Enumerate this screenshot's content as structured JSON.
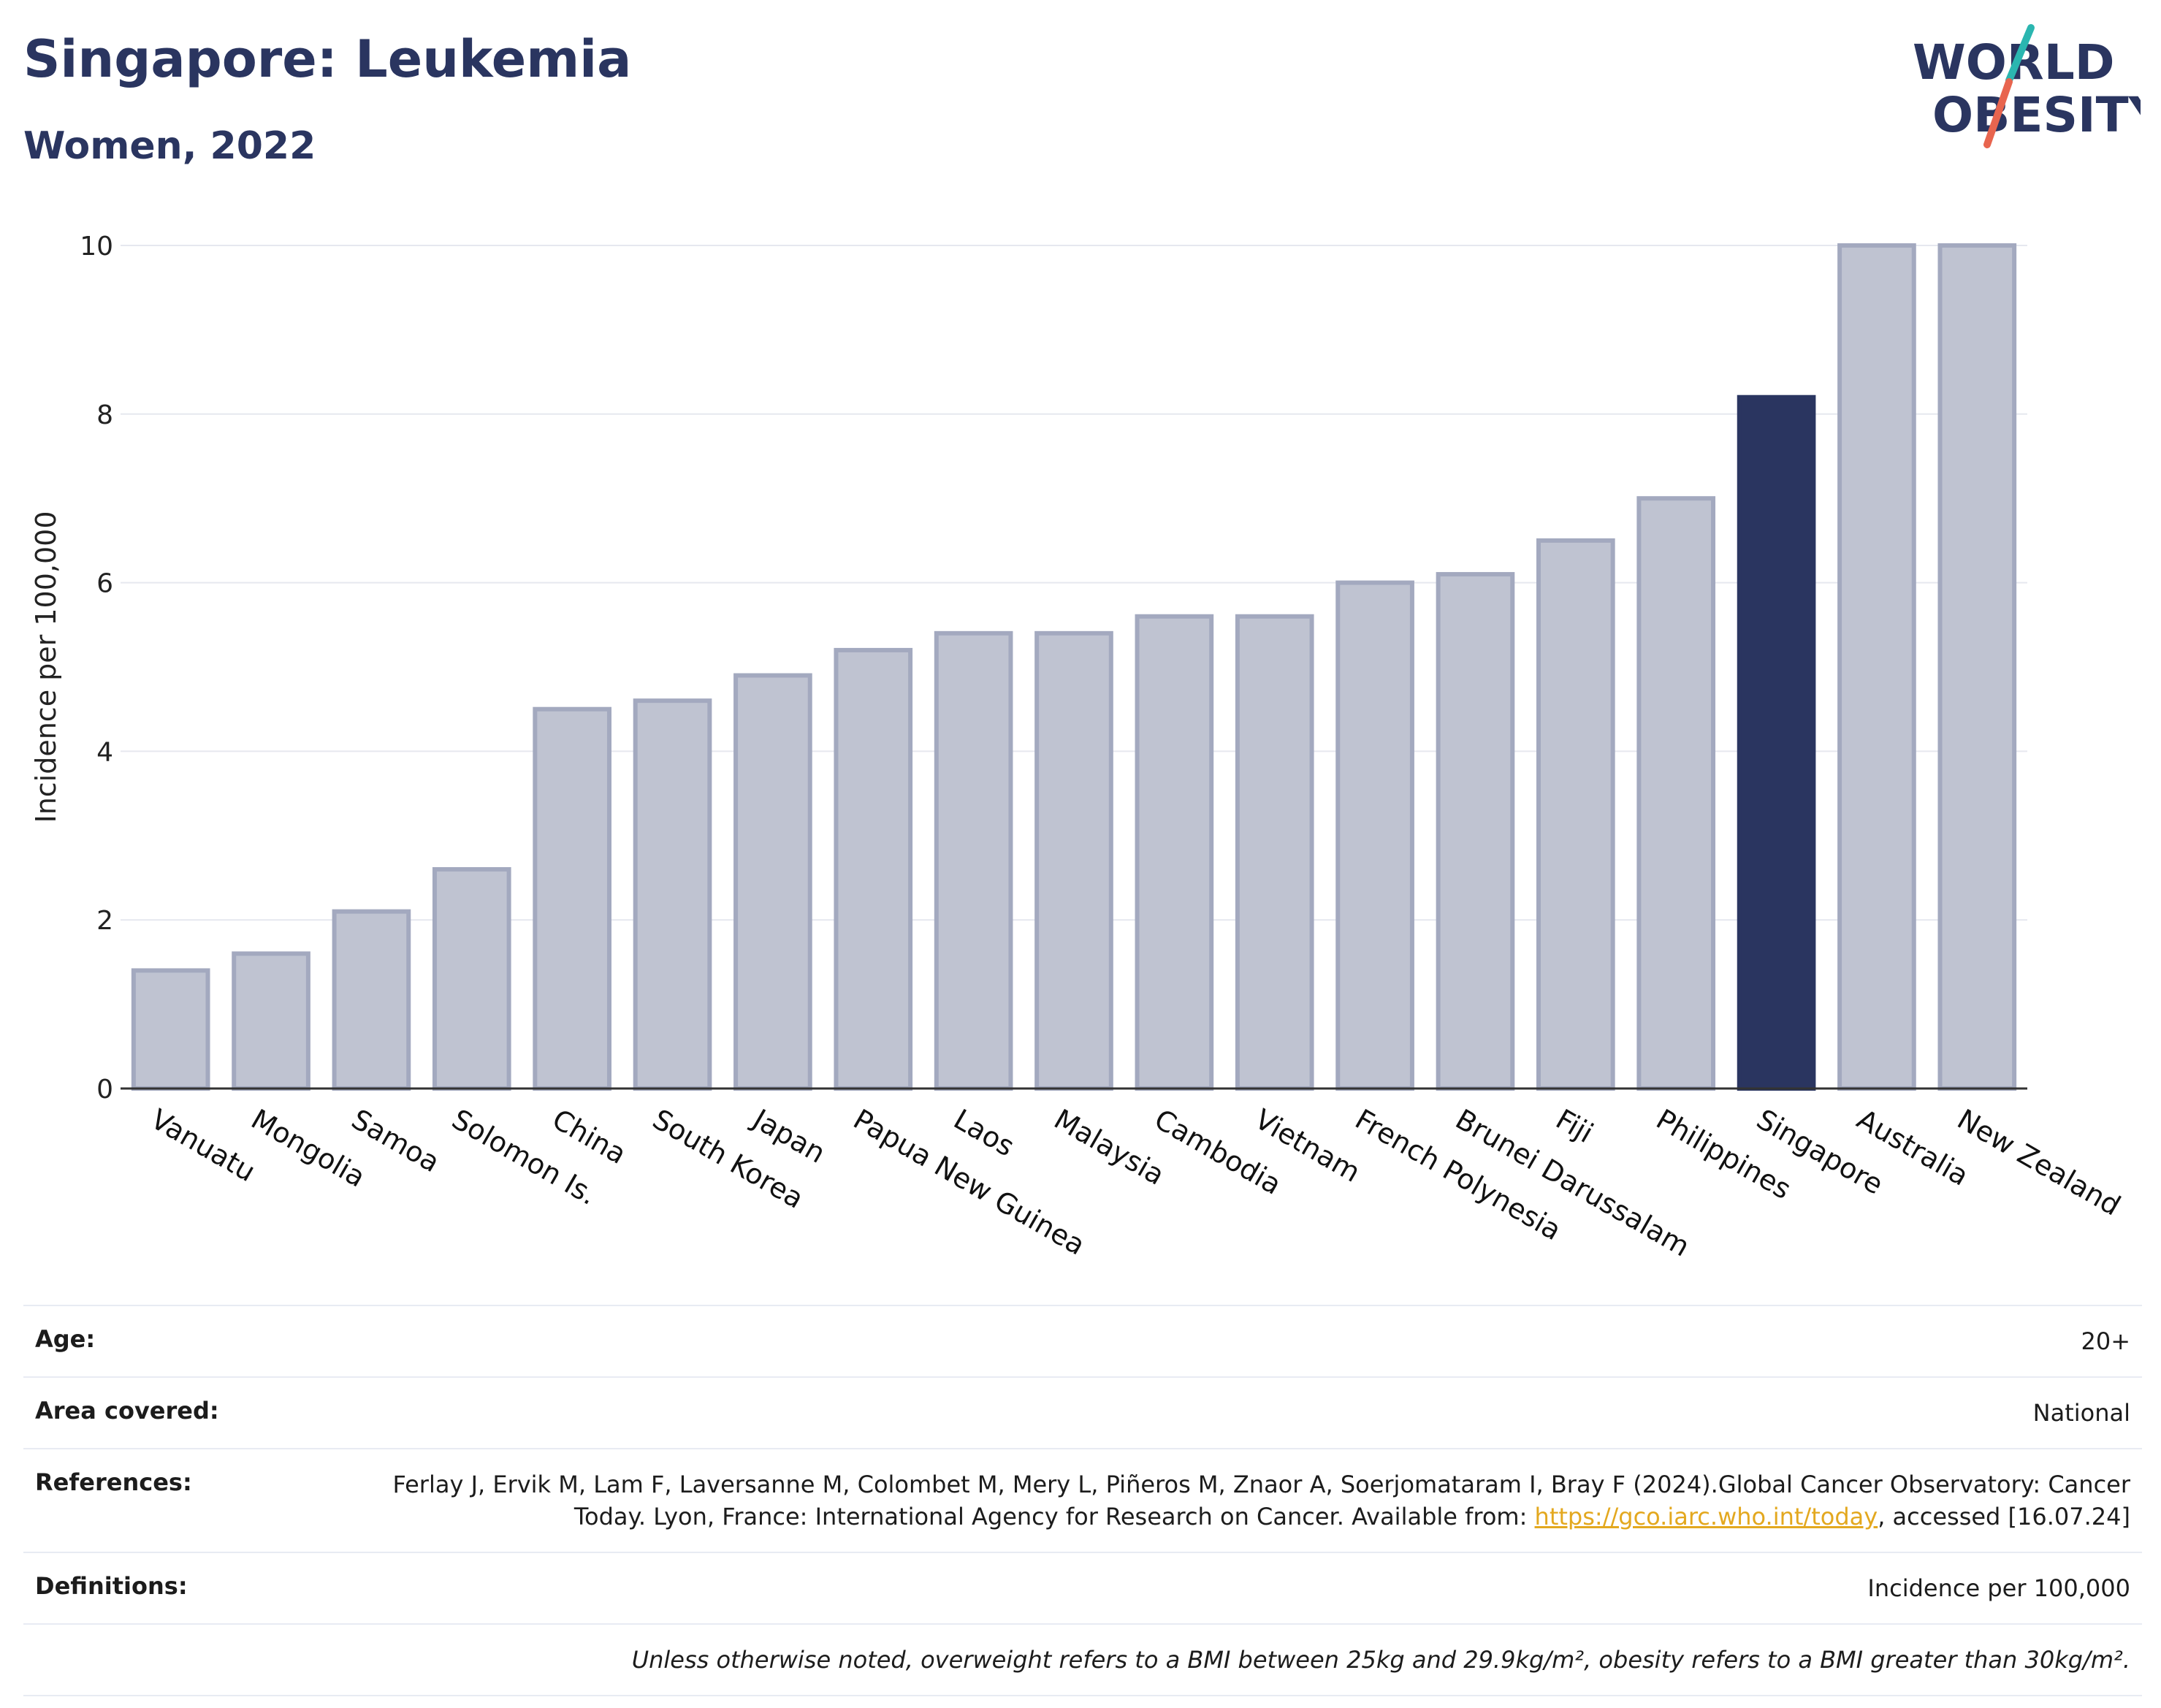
{
  "header": {
    "title": "Singapore: Leukemia",
    "subtitle": "Women, 2022"
  },
  "logo": {
    "line1": "WORLD",
    "line2": "OBESITY",
    "accent_colors": [
      "#2bb6b0",
      "#e8654f"
    ]
  },
  "chart_data": {
    "type": "bar",
    "categories": [
      "Vanuatu",
      "Mongolia",
      "Samoa",
      "Solomon Is.",
      "China",
      "South Korea",
      "Japan",
      "Papua New Guinea",
      "Laos",
      "Malaysia",
      "Cambodia",
      "Vietnam",
      "French Polynesia",
      "Brunei Darussalam",
      "Fiji",
      "Philippines",
      "Singapore",
      "Australia",
      "New Zealand"
    ],
    "values": [
      1.4,
      1.6,
      2.1,
      2.6,
      4.5,
      4.6,
      4.9,
      5.2,
      5.4,
      5.4,
      5.6,
      5.6,
      6.0,
      6.1,
      6.5,
      7.0,
      8.2,
      10.0,
      10.0
    ],
    "highlight": "Singapore",
    "ylabel": "Incidence per 100,000",
    "ylim": [
      0,
      10
    ],
    "yticks": [
      0,
      2,
      4,
      6,
      8,
      10
    ],
    "grid": true,
    "colors": {
      "bar": "#bfc3d1",
      "bar_border": "#a3a9bf",
      "highlight": "#2a3560"
    }
  },
  "meta": {
    "age_label": "Age:",
    "age_value": "20+",
    "area_label": "Area covered:",
    "area_value": "National",
    "references_label": "References:",
    "references_text_1": "Ferlay J, Ervik M, Lam F, Laversanne M, Colombet M, Mery L, Piñeros M, Znaor A, Soerjomataram I, Bray F (2024).Global Cancer Observatory: Cancer Today. Lyon, France: International Agency for Research on Cancer. Available from: ",
    "references_link": "https://gco.iarc.who.int/today",
    "references_text_2": ", accessed [16.07.24]",
    "definitions_label": "Definitions:",
    "definitions_value": "Incidence per 100,000",
    "note": "Unless otherwise noted, overweight refers to a BMI between 25kg and 29.9kg/m², obesity refers to a BMI greater than 30kg/m²."
  }
}
